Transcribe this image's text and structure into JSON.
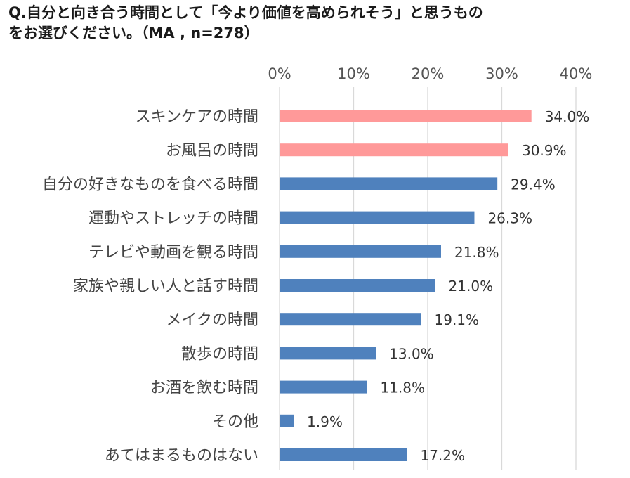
{
  "title_line1": "Q.自分と向き合う時間として「今より価値を高められそう」と思うもの",
  "title_line2": "をお選びください。（MA , n=278）",
  "colors": {
    "highlight": "#FF9999",
    "default": "#4F81BD",
    "grid": "#D9D9D9"
  },
  "chart_data": {
    "type": "bar",
    "orientation": "horizontal",
    "categories": [
      "スキンケアの時間",
      "お風呂の時間",
      "自分の好きなものを食べる時間",
      "運動やストレッチの時間",
      "テレビや動画を観る時間",
      "家族や親しい人と話す時間",
      "メイクの時間",
      "散歩の時間",
      "お酒を飲む時間",
      "その他",
      "あてはまるものはない"
    ],
    "values": [
      34.0,
      30.9,
      29.4,
      26.3,
      21.8,
      21.0,
      19.1,
      13.0,
      11.8,
      1.9,
      17.2
    ],
    "value_labels": [
      "34.0%",
      "30.9%",
      "29.4%",
      "26.3%",
      "21.8%",
      "21.0%",
      "19.1%",
      "13.0%",
      "11.8%",
      "1.9%",
      "17.2%"
    ],
    "highlighted": [
      true,
      true,
      false,
      false,
      false,
      false,
      false,
      false,
      false,
      false,
      false
    ],
    "xlim": [
      0,
      40
    ],
    "x_ticks": [
      0,
      10,
      20,
      30,
      40
    ],
    "x_tick_labels": [
      "0%",
      "10%",
      "20%",
      "30%",
      "40%"
    ],
    "axis_position": "top",
    "grid": true,
    "legend": "none"
  }
}
